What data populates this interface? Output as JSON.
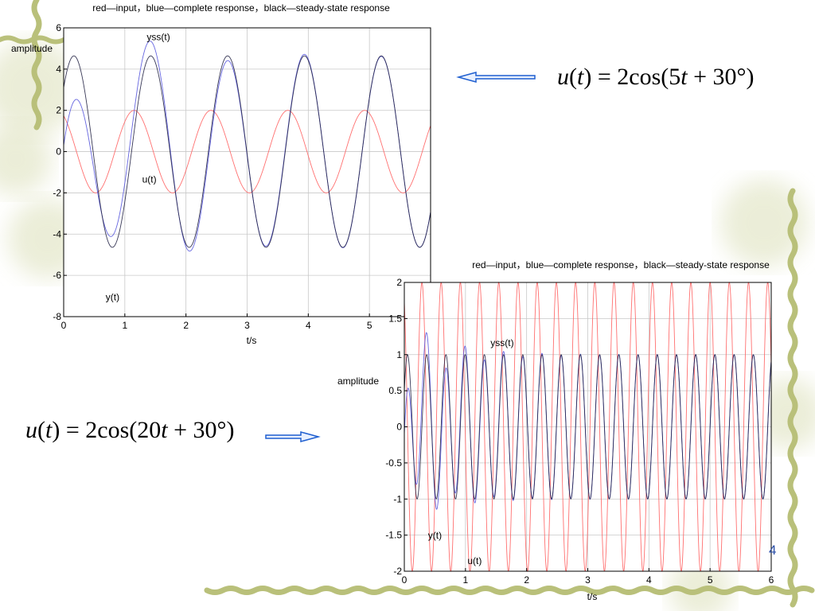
{
  "slide": {
    "page_number": "4",
    "formula_top": {
      "prefix": "u",
      "arg": "t",
      "eq": "= 2cos(5",
      "tvar": "t",
      "rest": " + 30°)"
    },
    "formula_bottom": {
      "prefix": "u",
      "arg": "t",
      "eq": "= 2cos(20",
      "tvar": "t",
      "rest": " + 30°)"
    },
    "colors": {
      "input": "#ff6060",
      "complete": "#5555dd",
      "steady": "#222244",
      "vine": "#b9c07a",
      "arrow": "#1f5fd0"
    }
  },
  "chart_data": [
    {
      "type": "line",
      "title": "red—input，blue—complete response，black—steady-state response",
      "xlabel": "t/s",
      "ylabel": "amplitude",
      "xlim": [
        0,
        6
      ],
      "ylim": [
        -8,
        6
      ],
      "x_ticks": [
        0,
        1,
        2,
        3,
        4,
        5
      ],
      "y_ticks": [
        -8,
        -6,
        -4,
        -2,
        0,
        2,
        4,
        6
      ],
      "grid": true,
      "annotations": [
        {
          "text": "yss(t)",
          "x": 1.55,
          "y": 5.4
        },
        {
          "text": "u(t)",
          "x": 1.4,
          "y": -1.5
        },
        {
          "text": "y(t)",
          "x": 0.8,
          "y": -7.2
        }
      ],
      "series": [
        {
          "role": "input",
          "color": "#ff6060",
          "amplitude": 2,
          "omega": 5,
          "phase_deg": 30
        },
        {
          "role": "complete",
          "color": "#5555dd",
          "amplitude": 4.64,
          "omega": 5,
          "phase_deg": -48,
          "transient_amplitude": -2.8,
          "decay_rate": 0.9
        },
        {
          "role": "steady",
          "color": "#222244",
          "amplitude": 4.64,
          "omega": 5,
          "phase_deg": -48
        }
      ]
    },
    {
      "type": "line",
      "title": "red—input，blue—complete response，black—steady-state response",
      "xlabel": "t/s",
      "ylabel": "amplitude",
      "xlim": [
        0,
        6
      ],
      "ylim": [
        -2,
        2
      ],
      "x_ticks": [
        0,
        1,
        2,
        3,
        4,
        5,
        6
      ],
      "y_ticks": [
        -2,
        -1.5,
        -1,
        -0.5,
        0,
        0.5,
        1,
        1.5,
        2
      ],
      "grid": true,
      "annotations": [
        {
          "text": "yss(t)",
          "x": 1.6,
          "y": 1.12
        },
        {
          "text": "y(t)",
          "x": 0.5,
          "y": -1.55
        },
        {
          "text": "u(t)",
          "x": 1.15,
          "y": -1.9
        }
      ],
      "series": [
        {
          "role": "input",
          "color": "#ff6060",
          "amplitude": 2,
          "omega": 20,
          "phase_deg": 30
        },
        {
          "role": "complete",
          "color": "#5555dd",
          "amplitude": 1.0,
          "omega": 20,
          "phase_deg": -60,
          "transient_amplitude": -0.6,
          "decay_rate": 1.5
        },
        {
          "role": "steady",
          "color": "#222244",
          "amplitude": 1.0,
          "omega": 20,
          "phase_deg": -60
        }
      ]
    }
  ]
}
